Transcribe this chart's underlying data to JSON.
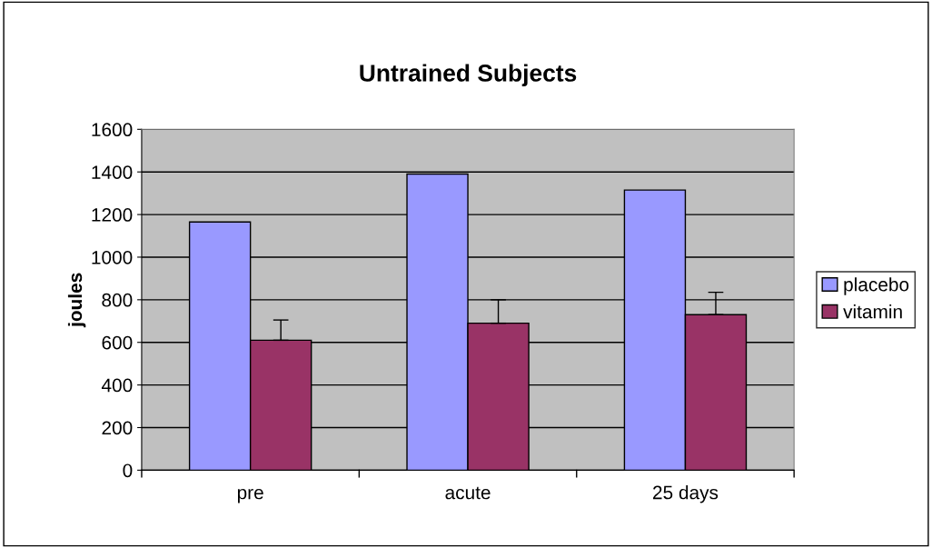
{
  "chart_data": {
    "type": "bar",
    "title": "Untrained Subjects",
    "ylabel": "joules",
    "categories": [
      "pre",
      "acute",
      "25 days"
    ],
    "series": [
      {
        "name": "placebo",
        "color": "#9999ff",
        "values": [
          1165,
          1390,
          1315
        ]
      },
      {
        "name": "vitamin",
        "color": "#993366",
        "values": [
          610,
          690,
          730
        ],
        "errors": [
          [
            610,
            705
          ],
          [
            690,
            800
          ],
          [
            730,
            835
          ]
        ]
      }
    ],
    "ylim": [
      0,
      1600
    ],
    "yticks": [
      0,
      200,
      400,
      600,
      800,
      1000,
      1200,
      1400,
      1600
    ],
    "grid": "y",
    "legend": "right"
  }
}
